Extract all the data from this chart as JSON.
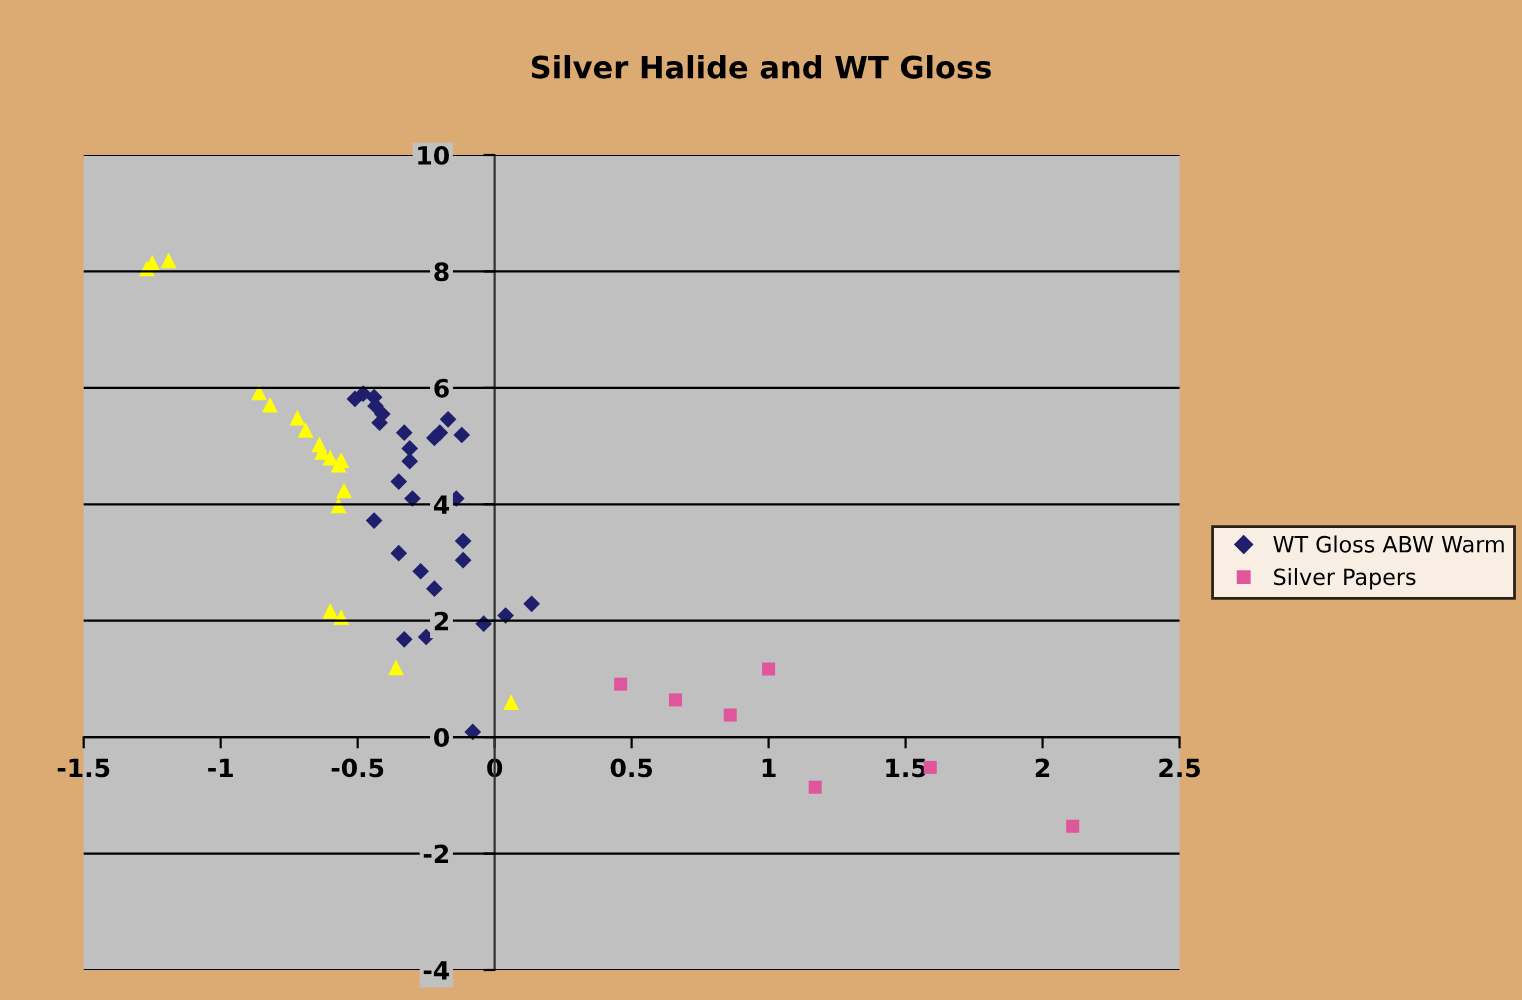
{
  "chart_data": {
    "type": "scatter",
    "title": "Silver Halide and WT Gloss",
    "xlim": [
      -1.5,
      2.5
    ],
    "xticks": [
      -1.5,
      -1,
      -0.5,
      0,
      0.5,
      1,
      1.5,
      2,
      2.5
    ],
    "ylim": [
      -4,
      10
    ],
    "yticks": [
      -4,
      -2,
      0,
      2,
      4,
      6,
      8,
      10
    ],
    "grid": "y",
    "legend": "right",
    "series": [
      {
        "name": "WT Gloss ABW Warm",
        "color": "#1f1f6e",
        "marker": "diamond",
        "x": [
          -0.51,
          -0.48,
          -0.44,
          -0.435,
          -0.41,
          -0.42,
          -0.33,
          -0.31,
          -0.31,
          -0.22,
          -0.2,
          -0.17,
          -0.12,
          -0.35,
          -0.3,
          -0.14,
          -0.44,
          -0.115,
          -0.115,
          -0.35,
          -0.27,
          -0.22,
          -0.33,
          -0.25,
          -0.04,
          0.04,
          0.135,
          -0.08
        ],
        "values": [
          5.81,
          5.9,
          5.84,
          5.69,
          5.55,
          5.4,
          5.23,
          4.96,
          4.74,
          5.14,
          5.23,
          5.46,
          5.19,
          4.39,
          4.1,
          4.1,
          3.72,
          3.37,
          3.04,
          3.16,
          2.85,
          2.55,
          1.68,
          1.72,
          1.95,
          2.09,
          2.29,
          0.09
        ]
      },
      {
        "name": "Silver Papers",
        "color": "#e0569a",
        "marker": "square",
        "x": [
          0.46,
          0.66,
          0.86,
          1.0,
          1.17,
          1.59,
          2.11
        ],
        "values": [
          0.91,
          0.64,
          0.38,
          1.17,
          -0.86,
          -0.52,
          -1.53
        ]
      },
      {
        "color": "#ffff00",
        "marker": "triangle",
        "x": [
          -1.27,
          -1.25,
          -1.19,
          -0.86,
          -0.82,
          -0.72,
          -0.69,
          -0.64,
          -0.63,
          -0.6,
          -0.56,
          -0.57,
          -0.55,
          -0.57,
          -0.6,
          -0.56,
          -0.36,
          0.06
        ],
        "values": [
          8.05,
          8.15,
          8.19,
          5.92,
          5.71,
          5.49,
          5.28,
          5.03,
          4.9,
          4.8,
          4.76,
          4.68,
          4.24,
          3.98,
          2.17,
          2.06,
          1.2,
          0.6
        ]
      }
    ]
  }
}
